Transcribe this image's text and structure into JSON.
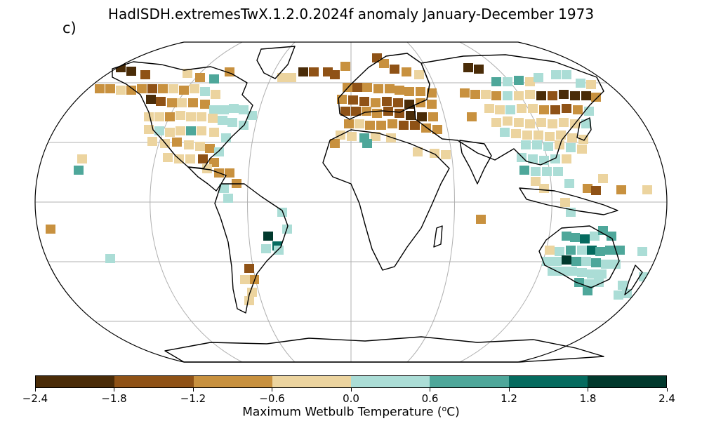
{
  "panel_label": "c)",
  "title": "HadISDH.extremesTwX.1.2.0.2024f anomaly January-December 1973",
  "colorbar": {
    "label_prefix": "Maximum Wetbulb Temperature (",
    "label_sup": "o",
    "label_suffix": "C)",
    "ticks": [
      "−2.4",
      "−1.8",
      "−1.2",
      "−0.6",
      "0.0",
      "0.6",
      "1.2",
      "1.8",
      "2.4"
    ],
    "tick_values": [
      -2.4,
      -1.8,
      -1.2,
      -0.6,
      0.0,
      0.6,
      1.2,
      1.8,
      2.4
    ],
    "colors": [
      "#4a2c08",
      "#8f5216",
      "#c8913f",
      "#ecd49f",
      "#abddd6",
      "#4ea79a",
      "#056b5f",
      "#01392d"
    ]
  },
  "map": {
    "projection": "Robinson",
    "gridlines": true
  }
}
